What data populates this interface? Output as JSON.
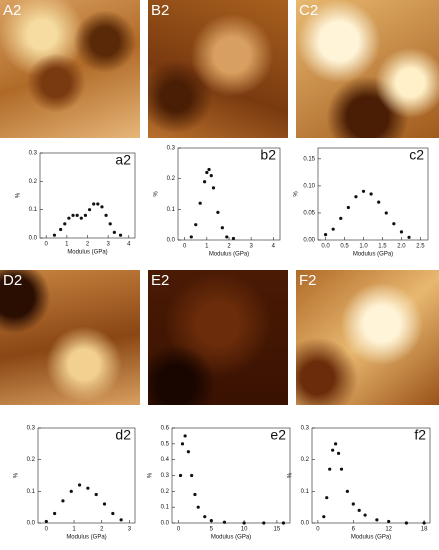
{
  "panels": [
    {
      "label": "A2"
    },
    {
      "label": "B2"
    },
    {
      "label": "C2"
    },
    {
      "label": "D2"
    },
    {
      "label": "E2"
    },
    {
      "label": "F2"
    }
  ],
  "chart_data": [
    {
      "type": "scatter",
      "label": "a2",
      "x_label": "Modulus (GPa)",
      "y_label": "%",
      "color": "#111111",
      "xlim": [
        -0.3,
        4.3
      ],
      "ylim": [
        0,
        0.3
      ],
      "xticks": [
        0,
        1,
        2,
        3,
        4
      ],
      "yticks": [
        {
          "value": 0,
          "label": "0.0"
        },
        0.1,
        0.2,
        0.3
      ],
      "x": [
        0.4,
        0.7,
        0.9,
        1.1,
        1.3,
        1.5,
        1.7,
        1.9,
        2.1,
        2.3,
        2.5,
        2.7,
        2.9,
        3.1,
        3.3,
        3.6
      ],
      "values": [
        0.01,
        0.03,
        0.05,
        0.07,
        0.08,
        0.08,
        0.07,
        0.08,
        0.1,
        0.12,
        0.12,
        0.11,
        0.08,
        0.05,
        0.02,
        0.01
      ]
    },
    {
      "type": "scatter",
      "label": "b2",
      "x_label": "Modulus (GPa)",
      "y_label": "%",
      "color": "#111111",
      "xlim": [
        -0.3,
        4.3
      ],
      "ylim": [
        0,
        0.3
      ],
      "xticks": [
        0,
        1,
        2,
        3,
        4
      ],
      "yticks": [
        {
          "value": 0,
          "label": "0.0"
        },
        0.1,
        0.2,
        0.3
      ],
      "x": [
        0.3,
        0.5,
        0.7,
        0.9,
        1.0,
        1.1,
        1.2,
        1.3,
        1.5,
        1.7,
        1.9,
        2.2
      ],
      "values": [
        0.01,
        0.05,
        0.12,
        0.19,
        0.22,
        0.23,
        0.21,
        0.17,
        0.09,
        0.04,
        0.01,
        0.005
      ]
    },
    {
      "type": "scatter",
      "label": "c2",
      "x_label": "Modulus (GPa)",
      "y_label": "%",
      "color": "#111111",
      "xlim": [
        -0.2,
        2.7
      ],
      "ylim": [
        0,
        0.17
      ],
      "xticks": [
        {
          "value": 0,
          "label": "0.0"
        },
        0.5,
        {
          "value": 1,
          "label": "1.0"
        },
        1.5,
        {
          "value": 2,
          "label": "2.0"
        },
        2.5
      ],
      "yticks": [
        {
          "value": 0,
          "label": "0.00"
        },
        0.05,
        {
          "value": 0.1,
          "label": "0.10"
        },
        0.15
      ],
      "x": [
        0.0,
        0.2,
        0.4,
        0.6,
        0.8,
        1.0,
        1.2,
        1.4,
        1.6,
        1.8,
        2.0,
        2.2
      ],
      "values": [
        0.01,
        0.02,
        0.04,
        0.06,
        0.08,
        0.09,
        0.085,
        0.07,
        0.05,
        0.03,
        0.015,
        0.005
      ]
    },
    {
      "type": "scatter",
      "label": "d2",
      "x_label": "Modulus (GPa)",
      "y_label": "%",
      "color": "#111111",
      "xlim": [
        -0.3,
        3.2
      ],
      "ylim": [
        0,
        0.3
      ],
      "xticks": [
        0,
        1,
        2,
        3
      ],
      "yticks": [
        {
          "value": 0,
          "label": "0.0"
        },
        0.1,
        0.2,
        0.3
      ],
      "x": [
        0,
        0.3,
        0.6,
        0.9,
        1.2,
        1.5,
        1.8,
        2.1,
        2.4,
        2.7
      ],
      "values": [
        0.005,
        0.03,
        0.07,
        0.1,
        0.12,
        0.11,
        0.09,
        0.06,
        0.03,
        0.01
      ]
    },
    {
      "type": "scatter",
      "label": "e2",
      "x_label": "Modulus (GPa)",
      "y_label": "%",
      "color": "#111111",
      "xlim": [
        -1,
        17
      ],
      "ylim": [
        0,
        0.6
      ],
      "xticks": [
        0,
        5,
        10,
        15
      ],
      "yticks": [
        {
          "value": 0,
          "label": "0.0"
        },
        0.1,
        0.2,
        0.3,
        0.4,
        0.5,
        0.6
      ],
      "x": [
        0.3,
        0.6,
        1,
        1.5,
        2,
        2.5,
        3,
        4,
        5,
        7,
        10,
        13,
        16
      ],
      "values": [
        0.3,
        0.5,
        0.55,
        0.45,
        0.3,
        0.18,
        0.1,
        0.04,
        0.015,
        0.005,
        0,
        0,
        0
      ]
    },
    {
      "type": "scatter",
      "label": "f2",
      "x_label": "Modulus (GPa)",
      "y_label": "%",
      "color": "#111111",
      "xlim": [
        -1,
        19
      ],
      "ylim": [
        0,
        0.3
      ],
      "xticks": [
        0,
        6,
        12,
        18
      ],
      "yticks": [
        {
          "value": 0,
          "label": "0.0"
        },
        0.1,
        0.2,
        0.3
      ],
      "x": [
        1,
        1.5,
        2,
        2.5,
        3,
        3.5,
        4,
        5,
        6,
        7,
        8,
        10,
        12,
        15,
        18
      ],
      "values": [
        0.02,
        0.08,
        0.17,
        0.23,
        0.25,
        0.22,
        0.17,
        0.1,
        0.06,
        0.04,
        0.025,
        0.01,
        0.005,
        0,
        0
      ]
    }
  ]
}
